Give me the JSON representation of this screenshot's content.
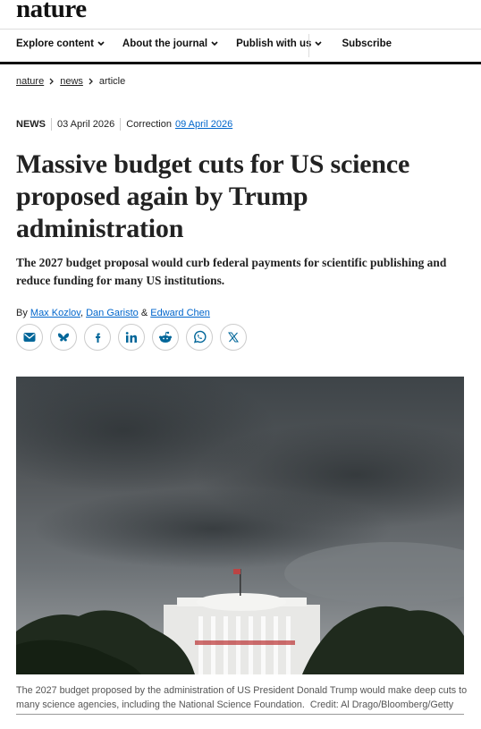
{
  "header": {
    "logo": "nature",
    "nav": [
      "Explore content",
      "About the journal",
      "Publish with us",
      "Subscribe"
    ]
  },
  "breadcrumb": [
    "nature",
    "news",
    "article"
  ],
  "meta": {
    "type": "NEWS",
    "date": "03 April 2026",
    "correction_label": "Correction",
    "correction_date": "09 April 2026"
  },
  "article": {
    "title": "Massive budget cuts for US science proposed again by Trump administration",
    "standfirst": "The 2027 budget proposal would curb federal payments for scientific publishing and reduce funding for many US institutions.",
    "byline_prefix": "By",
    "authors": [
      "Max Kozlov",
      "Dan Garisto",
      "Edward Chen"
    ],
    "author_separators": [
      ",",
      "&"
    ],
    "caption": "The 2027 budget proposed by the administration of US President Donald Trump would make deep cuts to many science agencies, including the National Science Foundation.",
    "credit": "Credit: Al Drago/Bloomberg/Getty"
  }
}
